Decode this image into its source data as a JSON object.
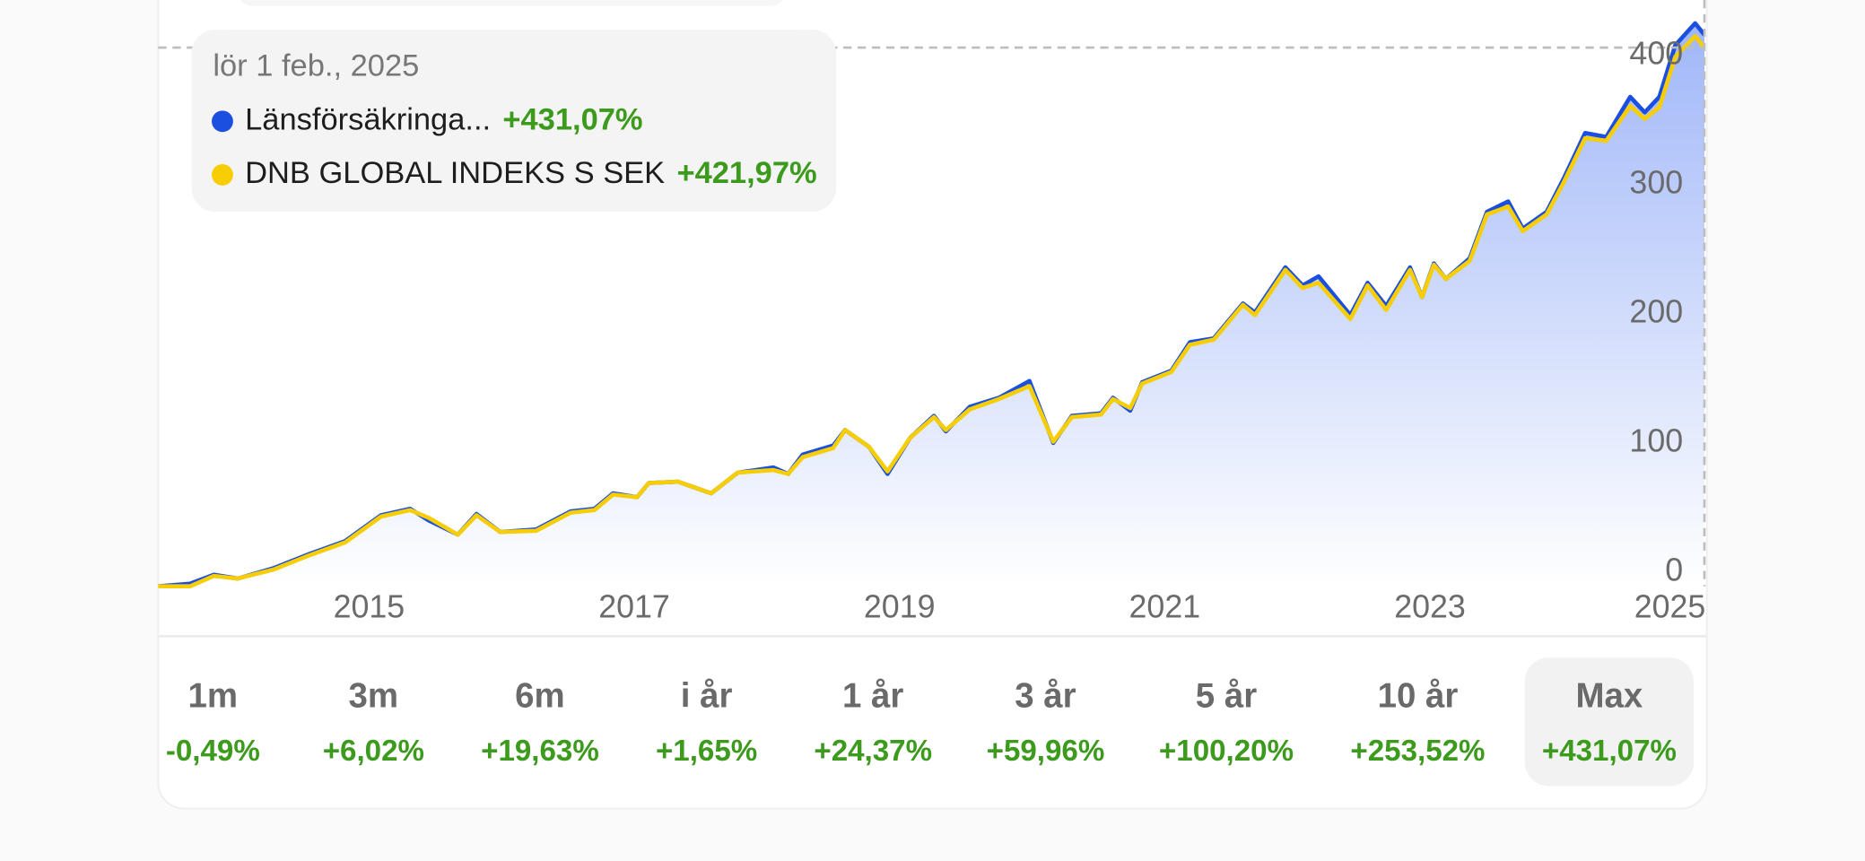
{
  "chart_data": {
    "type": "line",
    "x": [
      2013.41,
      2013.65,
      2013.83,
      2014.01,
      2014.28,
      2014.55,
      2014.82,
      2015.09,
      2015.31,
      2015.45,
      2015.67,
      2015.81,
      2015.99,
      2016.26,
      2016.52,
      2016.7,
      2016.84,
      2017.02,
      2017.11,
      2017.33,
      2017.58,
      2017.78,
      2018.05,
      2018.16,
      2018.27,
      2018.5,
      2018.59,
      2018.77,
      2018.91,
      2019.08,
      2019.26,
      2019.35,
      2019.53,
      2019.75,
      2019.98,
      2020.16,
      2020.3,
      2020.52,
      2020.61,
      2020.74,
      2020.83,
      2021.05,
      2021.19,
      2021.37,
      2021.59,
      2021.68,
      2021.91,
      2022.04,
      2022.16,
      2022.4,
      2022.53,
      2022.67,
      2022.85,
      2022.94,
      2023.03,
      2023.12,
      2023.3,
      2023.43,
      2023.59,
      2023.7,
      2023.88,
      2024.01,
      2024.17,
      2024.33,
      2024.51,
      2024.62,
      2024.73,
      2024.85,
      2025.0,
      2025.07
    ],
    "series": [
      {
        "name": "Länsförsäkringa...",
        "color": "#1a4fe0",
        "values": [
          -11,
          -9,
          -2,
          -5,
          3,
          14,
          24,
          44,
          49,
          40,
          29,
          45,
          31,
          33,
          47,
          49,
          61,
          58,
          69,
          70,
          61,
          77,
          81,
          76,
          91,
          98,
          110,
          97,
          76,
          104,
          121,
          109,
          128,
          135,
          148,
          100,
          121,
          123,
          135,
          125,
          147,
          156,
          178,
          181,
          208,
          201,
          236,
          222,
          229,
          199,
          224,
          206,
          236,
          213,
          239,
          227,
          243,
          279,
          287,
          266,
          279,
          305,
          340,
          337,
          368,
          356,
          368,
          408,
          425,
          416
        ]
      },
      {
        "name": "DNB GLOBAL INDEKS S SEK",
        "color": "#f7cd05",
        "values": [
          -11,
          -11,
          -3,
          -5,
          2,
          13,
          23,
          43,
          48,
          42,
          29,
          44,
          31,
          32,
          46,
          48,
          60,
          58,
          69,
          70,
          61,
          77,
          79,
          76,
          89,
          96,
          110,
          97,
          78,
          104,
          120,
          110,
          126,
          134,
          144,
          101,
          120,
          122,
          134,
          127,
          146,
          155,
          176,
          180,
          207,
          199,
          234,
          220,
          224,
          196,
          222,
          203,
          234,
          213,
          238,
          227,
          241,
          277,
          283,
          264,
          277,
          302,
          336,
          334,
          361,
          351,
          360,
          399,
          415,
          406
        ]
      }
    ],
    "xlim": [
      2013.41,
      2025.07
    ],
    "ylim": [
      -11,
      443
    ],
    "xticks": [
      2015,
      2017,
      2019,
      2021,
      2023,
      2025
    ],
    "yticks": [
      0,
      100,
      200,
      300,
      400
    ],
    "area_fill": "#8faaf7",
    "tooltip": {
      "date": "lör 1 feb., 2025",
      "values": [
        "+431,07%",
        "+421,97%"
      ]
    },
    "periods": [
      {
        "label": "1m",
        "value": "-0,49%"
      },
      {
        "label": "3m",
        "value": "+6,02%"
      },
      {
        "label": "6m",
        "value": "+19,63%"
      },
      {
        "label": "i år",
        "value": "+1,65%"
      },
      {
        "label": "1 år",
        "value": "+24,37%"
      },
      {
        "label": "3 år",
        "value": "+59,96%"
      },
      {
        "label": "5 år",
        "value": "+100,20%"
      },
      {
        "label": "10 år",
        "value": "+253,52%"
      },
      {
        "label": "Max",
        "value": "+431,07%",
        "selected": true
      }
    ]
  }
}
